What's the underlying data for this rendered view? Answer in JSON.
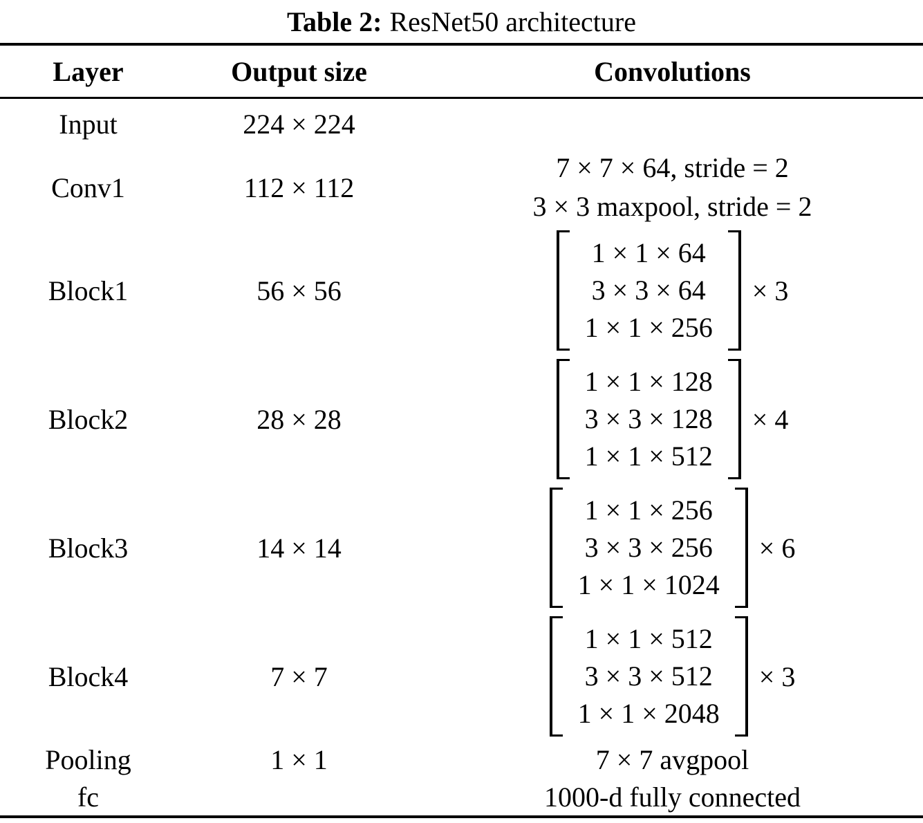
{
  "caption": {
    "label": "Table 2:",
    "text": "ResNet50 architecture"
  },
  "table": {
    "headers": [
      "Layer",
      "Output size",
      "Convolutions"
    ],
    "rows": [
      {
        "layer": "Input",
        "output": "224 × 224",
        "conv": ""
      },
      {
        "layer": "Conv1",
        "output": "112 × 112",
        "conv_lines": [
          "7 × 7 × 64, stride = 2",
          "3 × 3 maxpool, stride = 2"
        ]
      },
      {
        "layer": "Block1",
        "output": "56 × 56",
        "bracket": [
          "1 × 1 × 64",
          "3 × 3 × 64",
          "1 × 1 × 256"
        ],
        "multiplier": "× 3"
      },
      {
        "layer": "Block2",
        "output": "28 × 28",
        "bracket": [
          "1 × 1 × 128",
          "3 × 3 × 128",
          "1 × 1 × 512"
        ],
        "multiplier": "× 4"
      },
      {
        "layer": "Block3",
        "output": "14 × 14",
        "bracket": [
          "1 × 1 × 256",
          "3 × 3 × 256",
          "1 × 1 × 1024"
        ],
        "multiplier": "× 6"
      },
      {
        "layer": "Block4",
        "output": "7 × 7",
        "bracket": [
          "1 × 1 × 512",
          "3 × 3 × 512",
          "1 × 1 × 2048"
        ],
        "multiplier": "× 3"
      },
      {
        "layer": "Pooling",
        "output": "1 × 1",
        "conv": "7 × 7 avgpool"
      },
      {
        "layer": "fc",
        "output": "",
        "conv": "1000-d fully connected"
      }
    ]
  },
  "colors": {
    "text": "#000000",
    "background": "#ffffff",
    "rule": "#000000"
  }
}
